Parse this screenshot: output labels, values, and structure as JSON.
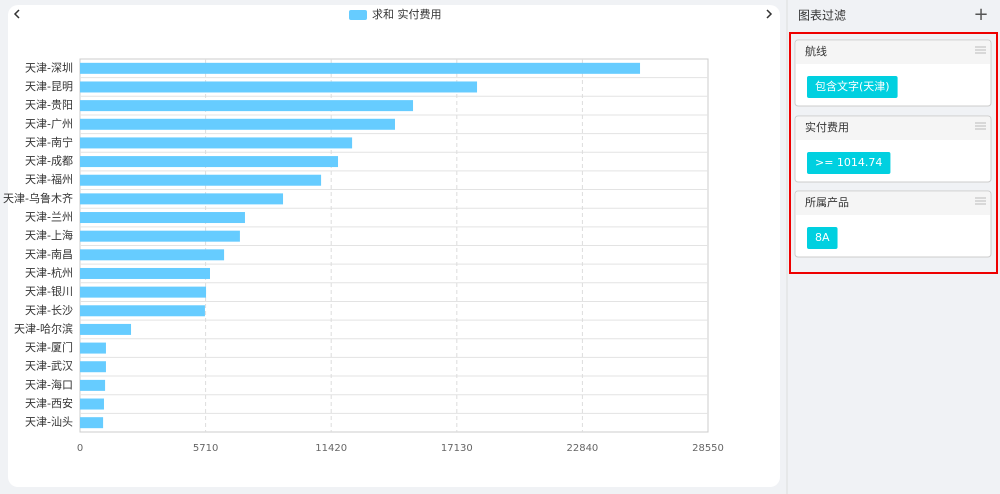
{
  "chart_data": {
    "type": "bar",
    "orientation": "horizontal",
    "categories": [
      "天津-深圳",
      "天津-昆明",
      "天津-贵阳",
      "天津-广州",
      "天津-南宁",
      "天津-成都",
      "天津-福州",
      "天津-乌鲁木齐",
      "天津-兰州",
      "天津-上海",
      "天津-南昌",
      "天津-杭州",
      "天津-银川",
      "天津-长沙",
      "天津-哈尔滨",
      "天津-厦门",
      "天津-武汉",
      "天津-海口",
      "天津-西安",
      "天津-汕头"
    ],
    "series": [
      {
        "name": "求和 实付费用",
        "color": "#66ccff",
        "values": [
          25460,
          18050,
          15140,
          14320,
          12370,
          11730,
          10960,
          9230,
          7500,
          7270,
          6550,
          5910,
          5730,
          5680,
          2320,
          1180,
          1180,
          1140,
          1090,
          1050
        ]
      }
    ],
    "xlim": [
      0,
      28550
    ],
    "xticks": [
      0,
      5710,
      11420,
      17130,
      22840,
      28550
    ],
    "grid": true
  },
  "filter_panel": {
    "title": "图表过滤",
    "add": "+",
    "filters": [
      {
        "name": "航线",
        "tag": "包含文字(天津)"
      },
      {
        "name": "实付费用",
        "tag": ">= 1014.74"
      },
      {
        "name": "所属产品",
        "tag": "8A"
      }
    ]
  }
}
